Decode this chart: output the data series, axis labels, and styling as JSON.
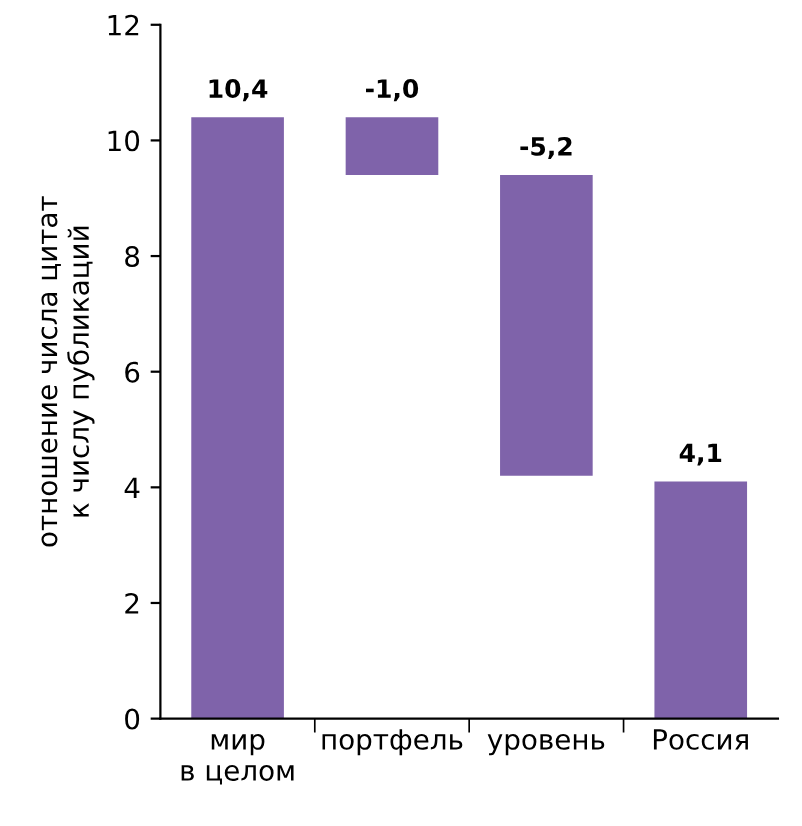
{
  "chart_data": {
    "type": "bar",
    "ylabel": "отношение числа цитат\nк числу публикаций",
    "categories": [
      "мир\nв целом",
      "портфель",
      "уровень",
      "Россия"
    ],
    "values": [
      10.4,
      -1.0,
      -5.2,
      4.1
    ],
    "base": [
      0,
      10.4,
      9.4,
      0
    ],
    "value_labels": [
      "10,4",
      "-1,0",
      "-5,2",
      "4,1"
    ],
    "color": "#7f63aa",
    "ylim": [
      0,
      12
    ],
    "yticks": [
      0,
      2,
      4,
      6,
      8,
      10,
      12
    ],
    "grid": false
  }
}
